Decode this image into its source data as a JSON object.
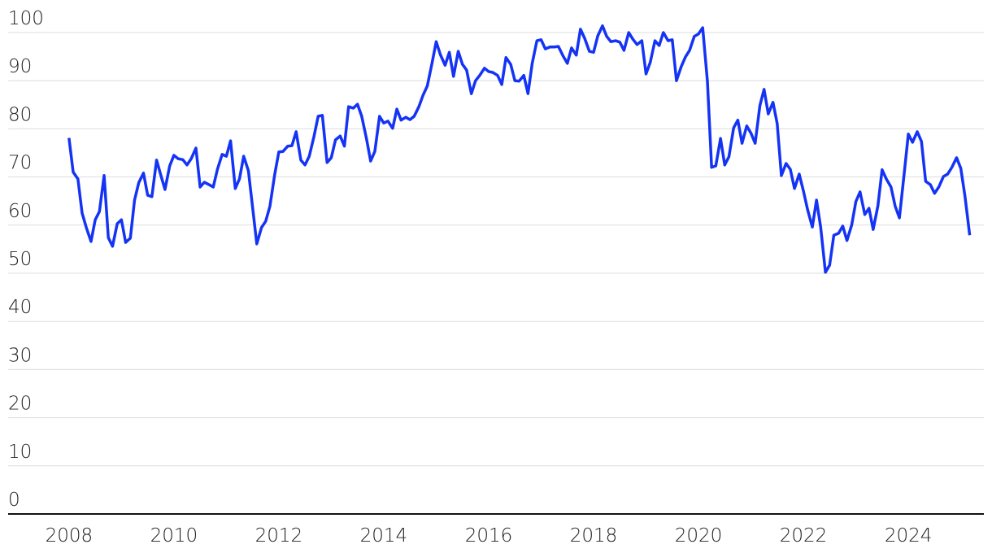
{
  "chart_data": {
    "type": "line",
    "x": [
      2008,
      2008.08,
      2008.17,
      2008.25,
      2008.33,
      2008.42,
      2008.5,
      2008.58,
      2008.67,
      2008.75,
      2008.83,
      2008.92,
      2009,
      2009.08,
      2009.17,
      2009.25,
      2009.33,
      2009.42,
      2009.5,
      2009.58,
      2009.67,
      2009.75,
      2009.83,
      2009.92,
      2010,
      2010.08,
      2010.17,
      2010.25,
      2010.33,
      2010.42,
      2010.5,
      2010.58,
      2010.67,
      2010.75,
      2010.83,
      2010.92,
      2011,
      2011.08,
      2011.17,
      2011.25,
      2011.33,
      2011.42,
      2011.5,
      2011.58,
      2011.67,
      2011.75,
      2011.83,
      2011.92,
      2012,
      2012.08,
      2012.17,
      2012.25,
      2012.33,
      2012.42,
      2012.5,
      2012.58,
      2012.67,
      2012.75,
      2012.83,
      2012.92,
      2013,
      2013.08,
      2013.17,
      2013.25,
      2013.33,
      2013.42,
      2013.5,
      2013.58,
      2013.67,
      2013.75,
      2013.83,
      2013.92,
      2014,
      2014.08,
      2014.17,
      2014.25,
      2014.33,
      2014.42,
      2014.5,
      2014.58,
      2014.67,
      2014.75,
      2014.83,
      2014.92,
      2015,
      2015.08,
      2015.17,
      2015.25,
      2015.33,
      2015.42,
      2015.5,
      2015.58,
      2015.67,
      2015.75,
      2015.83,
      2015.92,
      2016,
      2016.08,
      2016.17,
      2016.25,
      2016.33,
      2016.42,
      2016.5,
      2016.58,
      2016.67,
      2016.75,
      2016.83,
      2016.92,
      2017,
      2017.08,
      2017.17,
      2017.25,
      2017.33,
      2017.42,
      2017.5,
      2017.58,
      2017.67,
      2017.75,
      2017.83,
      2017.92,
      2018,
      2018.08,
      2018.17,
      2018.25,
      2018.33,
      2018.42,
      2018.5,
      2018.58,
      2018.67,
      2018.75,
      2018.83,
      2018.92,
      2019,
      2019.08,
      2019.17,
      2019.25,
      2019.33,
      2019.42,
      2019.5,
      2019.58,
      2019.67,
      2019.75,
      2019.83,
      2019.92,
      2020,
      2020.08,
      2020.17,
      2020.25,
      2020.33,
      2020.42,
      2020.5,
      2020.58,
      2020.67,
      2020.75,
      2020.83,
      2020.92,
      2021,
      2021.08,
      2021.17,
      2021.25,
      2021.33,
      2021.42,
      2021.5,
      2021.58,
      2021.67,
      2021.75,
      2021.83,
      2021.92,
      2022,
      2022.08,
      2022.17,
      2022.25,
      2022.33,
      2022.42,
      2022.5,
      2022.58,
      2022.67,
      2022.75,
      2022.83,
      2022.92,
      2023,
      2023.08,
      2023.17,
      2023.25,
      2023.33,
      2023.42,
      2023.5,
      2023.58,
      2023.67,
      2023.75,
      2023.83,
      2023.92,
      2024,
      2024.08,
      2024.17,
      2024.25,
      2024.33,
      2024.42,
      2024.5,
      2024.58,
      2024.67,
      2024.75,
      2024.83,
      2024.92,
      2025,
      2025.08,
      2025.17
    ],
    "series": [
      {
        "color": "#1433f5",
        "values": [
          78.1,
          71,
          69.6,
          62.5,
          59.5,
          56.6,
          61.1,
          62.8,
          70.3,
          57.4,
          55.6,
          60.3,
          61.1,
          56.4,
          57.3,
          65.2,
          68.8,
          70.8,
          66.2,
          65.9,
          73.5,
          70.4,
          67.4,
          72.3,
          74.5,
          73.8,
          73.6,
          72.5,
          73.8,
          76,
          67.9,
          68.9,
          68.4,
          67.9,
          71.6,
          74.7,
          74.3,
          77.5,
          67.6,
          69.6,
          74.3,
          71.3,
          63.7,
          56.1,
          59.5,
          60.8,
          63.9,
          70.4,
          75.2,
          75.3,
          76.4,
          76.5,
          79.4,
          73.5,
          72.5,
          74.3,
          78.4,
          82.6,
          82.8,
          73,
          74,
          77.7,
          78.5,
          76.4,
          84.6,
          84.3,
          85.1,
          82.6,
          78,
          73.3,
          75.3,
          82.6,
          81.2,
          81.6,
          80.1,
          84.1,
          81.8,
          82.4,
          81.9,
          82.6,
          84.6,
          87,
          88.9,
          93.6,
          98.1,
          95.4,
          93.2,
          95.9,
          90.9,
          96.1,
          93.4,
          92.2,
          87.3,
          90,
          91.1,
          92.6,
          91.9,
          91.7,
          91.1,
          89.2,
          94.8,
          93.4,
          90,
          89.9,
          91.1,
          87.3,
          93.6,
          98.3,
          98.5,
          96.6,
          97,
          97,
          97.1,
          95.1,
          93.6,
          96.8,
          95.3,
          100.7,
          98.8,
          96.1,
          95.9,
          99.3,
          101.4,
          99.2,
          98.1,
          98.3,
          98,
          96.3,
          100,
          98.6,
          97.5,
          98.3,
          91.4,
          93.8,
          98.3,
          97.3,
          100,
          98.3,
          98.5,
          90,
          92.9,
          94.9,
          96.3,
          99.2,
          99.7,
          101,
          89.9,
          72,
          72.3,
          78,
          72.5,
          74.2,
          80.2,
          81.8,
          77,
          80.6,
          79.1,
          77,
          84.8,
          88.2,
          83.1,
          85.5,
          81.1,
          70.3,
          72.8,
          71.6,
          67.6,
          70.6,
          67.1,
          63.2,
          59.6,
          65.2,
          59.5,
          50.2,
          51.7,
          57.9,
          58.3,
          59.8,
          56.8,
          60,
          64.9,
          66.9,
          62.2,
          63.5,
          59.1,
          64,
          71.5,
          69.6,
          67.9,
          63.9,
          61.5,
          70.6,
          78.9,
          77.2,
          79.4,
          77.4,
          69.1,
          68.4,
          66.6,
          67.9,
          70.1,
          70.6,
          72,
          74,
          71.8,
          66,
          57.9
        ]
      }
    ],
    "xlim": [
      2006.84,
      2025.44
    ],
    "xticks": [
      2008,
      2010,
      2012,
      2014,
      2016,
      2018,
      2020,
      2022,
      2024
    ],
    "ylim": [
      0,
      105
    ],
    "yticks": [
      0,
      10,
      20,
      30,
      40,
      50,
      60,
      70,
      80,
      90,
      100
    ],
    "grid": true
  }
}
